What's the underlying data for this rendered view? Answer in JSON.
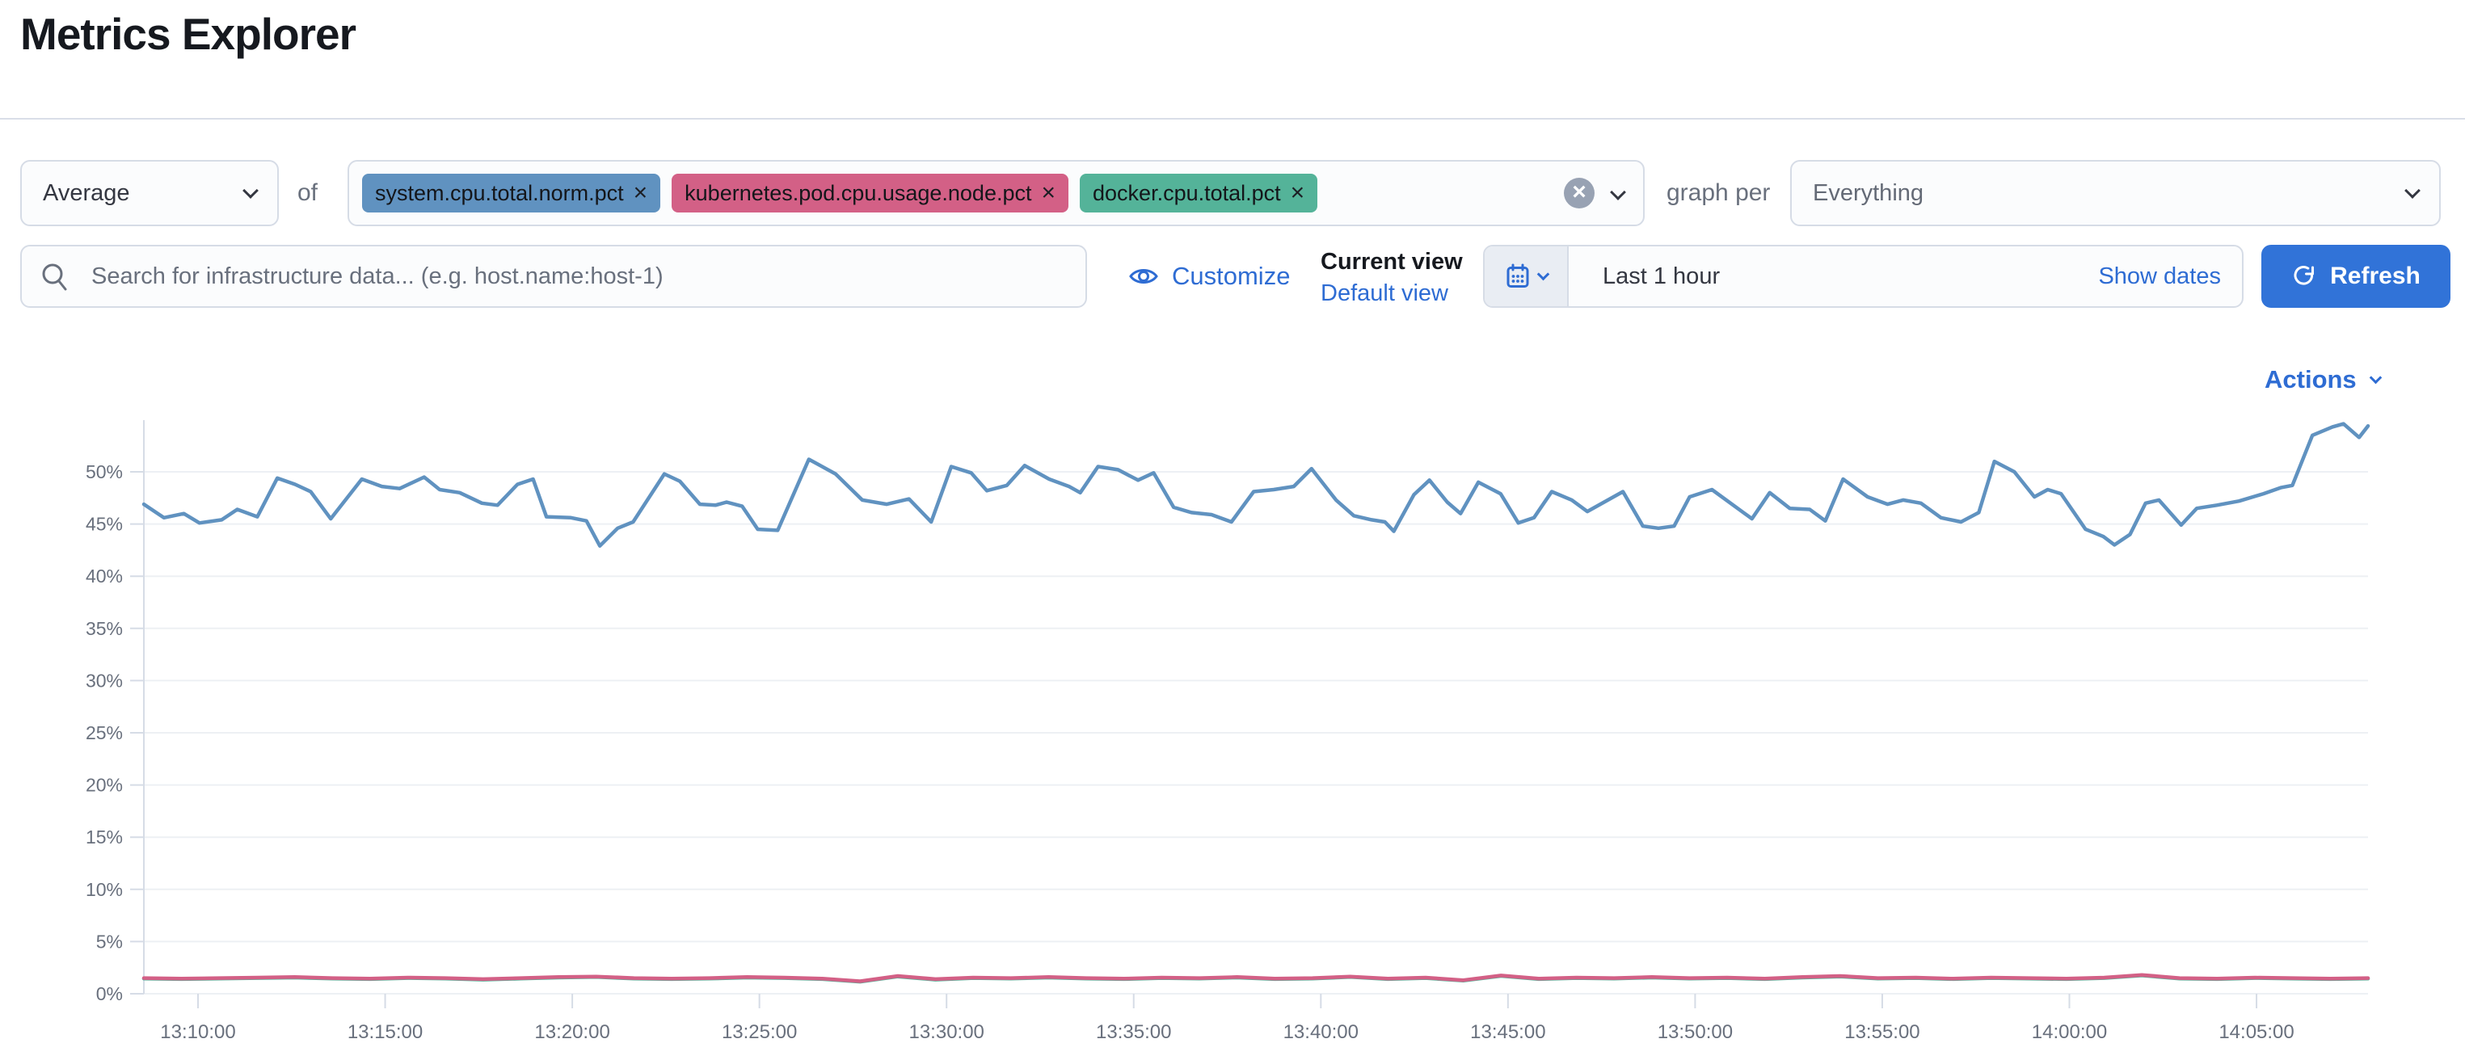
{
  "page": {
    "title": "Metrics Explorer"
  },
  "toolbar": {
    "aggregation": {
      "value": "Average"
    },
    "of_label": "of",
    "metrics": [
      {
        "label": "system.cpu.total.norm.pct",
        "color": "#6092C0"
      },
      {
        "label": "kubernetes.pod.cpu.usage.node.pct",
        "color": "#D36086"
      },
      {
        "label": "docker.cpu.total.pct",
        "color": "#54B399"
      }
    ],
    "graph_per_label": "graph per",
    "group_by": {
      "value": "Everything"
    }
  },
  "search": {
    "placeholder": "Search for infrastructure data... (e.g. host.name:host-1)"
  },
  "view_controls": {
    "customize_label": "Customize",
    "current_view_label": "Current view",
    "view_name": "Default view"
  },
  "datepicker": {
    "quick_value": "Last 1 hour",
    "show_dates_label": "Show dates",
    "refresh_label": "Refresh"
  },
  "chart": {
    "actions_label": "Actions"
  },
  "colors": {
    "accent_link": "#2e6cd3",
    "refresh_button": "#3173d8",
    "grid": "#edf0f4",
    "axis": "#d6dce6",
    "tick_text": "#69707d"
  },
  "chart_data": {
    "type": "line",
    "title": "",
    "xlabel": "",
    "ylabel": "",
    "ylim": [
      0,
      55
    ],
    "grid": true,
    "legend": "none",
    "y_tick_values": [
      0,
      5,
      10,
      15,
      20,
      25,
      30,
      35,
      40,
      45,
      50
    ],
    "y_tick_labels": [
      "0%",
      "5%",
      "10%",
      "15%",
      "20%",
      "25%",
      "30%",
      "35%",
      "40%",
      "45%",
      "50%"
    ],
    "x_tick_labels": [
      "13:10:00",
      "13:15:00",
      "13:20:00",
      "13:25:00",
      "13:30:00",
      "13:35:00",
      "13:40:00",
      "13:45:00",
      "13:50:00",
      "13:55:00",
      "14:00:00",
      "14:05:00"
    ],
    "x_range_note": "last 1 hour, ~13:08 to ~14:08",
    "series": [
      {
        "name": "docker.cpu.total.pct",
        "color": "#54B399",
        "unit": "%",
        "values": [
          1.45,
          1.4,
          1.45,
          1.5,
          1.55,
          1.45,
          1.4,
          1.5,
          1.45,
          1.35,
          1.45,
          1.55,
          1.6,
          1.45,
          1.4,
          1.45,
          1.55,
          1.5,
          1.4,
          1.15,
          1.65,
          1.35,
          1.5,
          1.45,
          1.55,
          1.45,
          1.4,
          1.5,
          1.45,
          1.55,
          1.4,
          1.45,
          1.6,
          1.4,
          1.5,
          1.25,
          1.7,
          1.4,
          1.5,
          1.45,
          1.55,
          1.45,
          1.5,
          1.4,
          1.55,
          1.65,
          1.45,
          1.5,
          1.4,
          1.5,
          1.45,
          1.4,
          1.5,
          1.75,
          1.45,
          1.4,
          1.5,
          1.45,
          1.4,
          1.45
        ]
      },
      {
        "name": "kubernetes.pod.cpu.usage.node.pct",
        "color": "#D36086",
        "unit": "%",
        "values": [
          1.5,
          1.45,
          1.5,
          1.55,
          1.6,
          1.5,
          1.45,
          1.55,
          1.5,
          1.4,
          1.5,
          1.6,
          1.65,
          1.5,
          1.45,
          1.5,
          1.6,
          1.55,
          1.45,
          1.2,
          1.7,
          1.4,
          1.55,
          1.5,
          1.6,
          1.5,
          1.45,
          1.55,
          1.5,
          1.6,
          1.45,
          1.5,
          1.65,
          1.45,
          1.55,
          1.3,
          1.75,
          1.45,
          1.55,
          1.5,
          1.6,
          1.5,
          1.55,
          1.45,
          1.6,
          1.7,
          1.5,
          1.55,
          1.45,
          1.55,
          1.5,
          1.45,
          1.55,
          1.8,
          1.5,
          1.45,
          1.55,
          1.5,
          1.45,
          1.5
        ]
      },
      {
        "name": "system.cpu.total.norm.pct",
        "color": "#6092C0",
        "unit": "%",
        "points": [
          [
            0.0,
            46.9
          ],
          [
            0.009,
            45.6
          ],
          [
            0.018,
            46.0
          ],
          [
            0.025,
            45.1
          ],
          [
            0.035,
            45.4
          ],
          [
            0.042,
            46.4
          ],
          [
            0.051,
            45.7
          ],
          [
            0.06,
            49.4
          ],
          [
            0.068,
            48.8
          ],
          [
            0.075,
            48.1
          ],
          [
            0.084,
            45.5
          ],
          [
            0.098,
            49.3
          ],
          [
            0.107,
            48.6
          ],
          [
            0.115,
            48.4
          ],
          [
            0.126,
            49.5
          ],
          [
            0.133,
            48.3
          ],
          [
            0.142,
            48.0
          ],
          [
            0.152,
            47.0
          ],
          [
            0.159,
            46.8
          ],
          [
            0.168,
            48.8
          ],
          [
            0.175,
            49.3
          ],
          [
            0.181,
            45.7
          ],
          [
            0.192,
            45.6
          ],
          [
            0.199,
            45.3
          ],
          [
            0.205,
            42.9
          ],
          [
            0.213,
            44.6
          ],
          [
            0.22,
            45.2
          ],
          [
            0.234,
            49.8
          ],
          [
            0.241,
            49.1
          ],
          [
            0.25,
            46.9
          ],
          [
            0.257,
            46.8
          ],
          [
            0.262,
            47.1
          ],
          [
            0.269,
            46.7
          ],
          [
            0.276,
            44.5
          ],
          [
            0.285,
            44.4
          ],
          [
            0.299,
            51.2
          ],
          [
            0.311,
            49.8
          ],
          [
            0.323,
            47.3
          ],
          [
            0.334,
            46.9
          ],
          [
            0.344,
            47.4
          ],
          [
            0.354,
            45.2
          ],
          [
            0.363,
            50.5
          ],
          [
            0.372,
            49.9
          ],
          [
            0.379,
            48.2
          ],
          [
            0.388,
            48.7
          ],
          [
            0.396,
            50.6
          ],
          [
            0.407,
            49.3
          ],
          [
            0.416,
            48.6
          ],
          [
            0.421,
            48.0
          ],
          [
            0.429,
            50.5
          ],
          [
            0.438,
            50.2
          ],
          [
            0.447,
            49.2
          ],
          [
            0.454,
            49.9
          ],
          [
            0.463,
            46.6
          ],
          [
            0.471,
            46.1
          ],
          [
            0.48,
            45.9
          ],
          [
            0.489,
            45.2
          ],
          [
            0.499,
            48.1
          ],
          [
            0.508,
            48.3
          ],
          [
            0.517,
            48.6
          ],
          [
            0.525,
            50.3
          ],
          [
            0.536,
            47.3
          ],
          [
            0.544,
            45.8
          ],
          [
            0.552,
            45.4
          ],
          [
            0.558,
            45.2
          ],
          [
            0.562,
            44.3
          ],
          [
            0.571,
            47.8
          ],
          [
            0.578,
            49.2
          ],
          [
            0.586,
            47.1
          ],
          [
            0.592,
            46.0
          ],
          [
            0.6,
            49.0
          ],
          [
            0.61,
            47.9
          ],
          [
            0.618,
            45.1
          ],
          [
            0.625,
            45.6
          ],
          [
            0.633,
            48.1
          ],
          [
            0.642,
            47.3
          ],
          [
            0.649,
            46.2
          ],
          [
            0.665,
            48.1
          ],
          [
            0.674,
            44.8
          ],
          [
            0.681,
            44.6
          ],
          [
            0.688,
            44.8
          ],
          [
            0.695,
            47.6
          ],
          [
            0.705,
            48.3
          ],
          [
            0.723,
            45.5
          ],
          [
            0.731,
            48.0
          ],
          [
            0.74,
            46.5
          ],
          [
            0.749,
            46.4
          ],
          [
            0.756,
            45.3
          ],
          [
            0.764,
            49.3
          ],
          [
            0.775,
            47.6
          ],
          [
            0.784,
            46.9
          ],
          [
            0.791,
            47.3
          ],
          [
            0.799,
            47.0
          ],
          [
            0.808,
            45.6
          ],
          [
            0.817,
            45.2
          ],
          [
            0.825,
            46.1
          ],
          [
            0.832,
            51.0
          ],
          [
            0.841,
            50.0
          ],
          [
            0.85,
            47.6
          ],
          [
            0.856,
            48.3
          ],
          [
            0.862,
            47.9
          ],
          [
            0.873,
            44.5
          ],
          [
            0.881,
            43.8
          ],
          [
            0.886,
            43.0
          ],
          [
            0.893,
            44.0
          ],
          [
            0.9,
            47.0
          ],
          [
            0.906,
            47.3
          ],
          [
            0.916,
            44.9
          ],
          [
            0.923,
            46.5
          ],
          [
            0.932,
            46.8
          ],
          [
            0.942,
            47.2
          ],
          [
            0.953,
            47.9
          ],
          [
            0.961,
            48.5
          ],
          [
            0.966,
            48.7
          ],
          [
            0.975,
            53.5
          ],
          [
            0.984,
            54.3
          ],
          [
            0.989,
            54.6
          ],
          [
            0.996,
            53.3
          ],
          [
            1.0,
            54.4
          ]
        ]
      }
    ]
  }
}
